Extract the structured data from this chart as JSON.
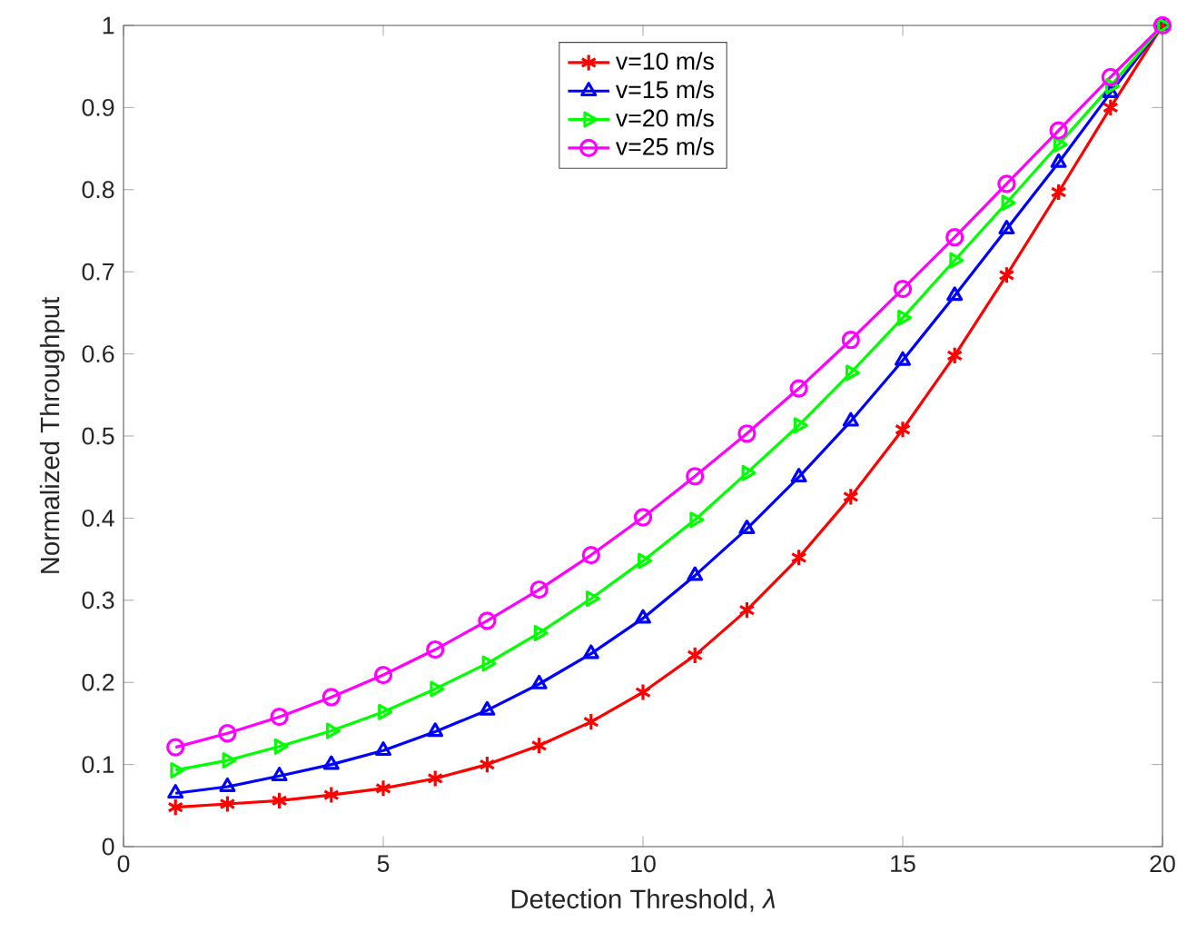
{
  "chart_data": {
    "type": "line",
    "xlabel": "Detection Threshold, *λ*",
    "ylabel": "Normalized Throughput",
    "x": [
      1,
      2,
      3,
      4,
      5,
      6,
      7,
      8,
      9,
      10,
      11,
      12,
      13,
      14,
      15,
      16,
      17,
      18,
      19,
      20
    ],
    "xlim": [
      0,
      20
    ],
    "xticks": [
      0,
      5,
      10,
      15,
      20
    ],
    "ylim": [
      0,
      1
    ],
    "yticks": [
      0,
      0.1,
      0.2,
      0.3,
      0.4,
      0.5,
      0.6,
      0.7,
      0.8,
      0.9,
      1
    ],
    "legend": "top",
    "line_style": "solid",
    "series": [
      {
        "name": "v=10 m/s",
        "color": "#ff0000",
        "marker": "cross",
        "values": [
          0.048,
          0.052,
          0.056,
          0.063,
          0.071,
          0.083,
          0.1,
          0.123,
          0.152,
          0.188,
          0.233,
          0.288,
          0.352,
          0.426,
          0.508,
          0.598,
          0.696,
          0.797,
          0.9,
          1.0
        ]
      },
      {
        "name": "v=15 m/s",
        "color": "#0000ff",
        "marker": "triangle",
        "values": [
          0.065,
          0.073,
          0.086,
          0.1,
          0.117,
          0.14,
          0.166,
          0.198,
          0.235,
          0.278,
          0.33,
          0.387,
          0.45,
          0.518,
          0.592,
          0.671,
          0.752,
          0.833,
          0.918,
          1.0
        ]
      },
      {
        "name": "v=20 m/s",
        "color": "#00ff00",
        "marker": "triangle-right",
        "values": [
          0.093,
          0.105,
          0.122,
          0.141,
          0.164,
          0.192,
          0.223,
          0.26,
          0.302,
          0.348,
          0.398,
          0.455,
          0.513,
          0.577,
          0.644,
          0.714,
          0.784,
          0.855,
          0.926,
          1.0
        ]
      },
      {
        "name": "v=25 m/s",
        "color": "#ff00ff",
        "marker": "circle",
        "values": [
          0.121,
          0.138,
          0.158,
          0.182,
          0.209,
          0.24,
          0.275,
          0.313,
          0.355,
          0.401,
          0.451,
          0.503,
          0.558,
          0.617,
          0.679,
          0.742,
          0.807,
          0.872,
          0.937,
          1.0
        ]
      }
    ]
  }
}
